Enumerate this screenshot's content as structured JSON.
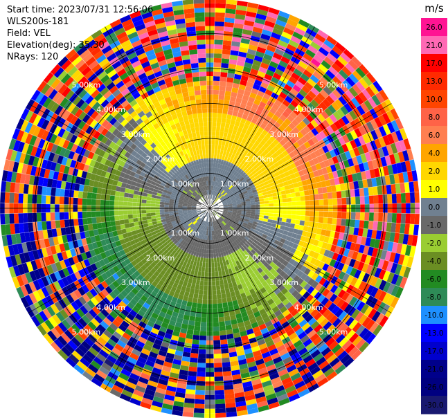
{
  "header": {
    "start_time": "Start time: 2023/07/31 12:56:06",
    "instrument": "WLS200s-181",
    "field": "Field: VEL",
    "elevation": "Elevation(deg): 35.30",
    "nrays": "NRays: 120"
  },
  "chart_data": {
    "type": "heatmap",
    "projection": "polar-ppi",
    "field": "VEL",
    "units": "m/s",
    "nrays": 120,
    "max_range_km": 6.0,
    "range_ring_labels": [
      "1.00km",
      "2.00km",
      "3.00km",
      "4.00km",
      "5.00km"
    ],
    "colorbar": {
      "title": "m/s",
      "tick_labels": [
        "26.0",
        "21.0",
        "17.0",
        "13.0",
        "10.0",
        "8.0",
        "6.0",
        "4.0",
        "2.0",
        "1.0",
        "0.0",
        "-1.0",
        "-2.0",
        "-4.0",
        "-6.0",
        "-8.0",
        "-10.0",
        "-13.0",
        "-17.0",
        "-21.0",
        "-26.0",
        "-30.0"
      ],
      "boundaries": [
        30,
        26,
        21,
        17,
        13,
        10,
        8,
        6,
        4,
        2,
        1,
        0,
        -1,
        -2,
        -4,
        -6,
        -8,
        -10,
        -13,
        -17,
        -21,
        -26,
        -30
      ],
      "colors": [
        "#ff1493",
        "#ff69b4",
        "#ff0000",
        "#ff2a00",
        "#ff4500",
        "#ff6347",
        "#ff7f50",
        "#ffa500",
        "#ffd700",
        "#ffff00",
        "#708090",
        "#696969",
        "#9acd32",
        "#6b8e23",
        "#228b22",
        "#2e8b57",
        "#1e90ff",
        "#0000ff",
        "#0000cd",
        "#00008b",
        "#000080",
        "#191970"
      ]
    }
  }
}
